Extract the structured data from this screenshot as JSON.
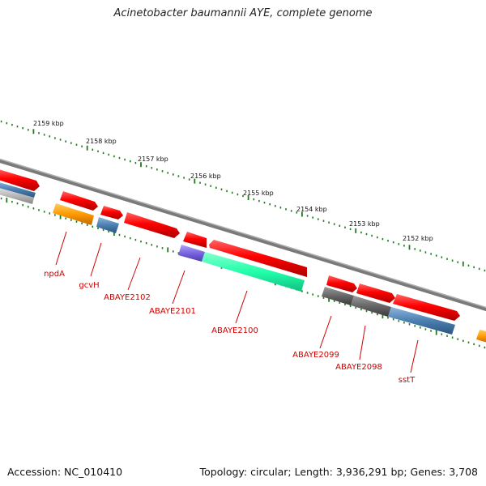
{
  "title": "Acinetobacter baumannii AYE, complete genome",
  "accession_text": "Accession: NC_010410",
  "summary_text": "Topology: circular; Length: 3,936,291 bp; Genes: 3,708",
  "scale_labels": [
    {
      "text": "2159 kbp"
    },
    {
      "text": "2158 kbp"
    },
    {
      "text": "2157 kbp"
    },
    {
      "text": "2156 kbp"
    },
    {
      "text": "2155 kbp"
    },
    {
      "text": "2154 kbp"
    },
    {
      "text": "2153 kbp"
    },
    {
      "text": "2152 kbp"
    }
  ],
  "gene_labels": [
    {
      "text": "npdA"
    },
    {
      "text": "gcvH"
    },
    {
      "text": "ABAYE2102"
    },
    {
      "text": "ABAYE2101"
    },
    {
      "text": "ABAYE2100"
    },
    {
      "text": "ABAYE2099"
    },
    {
      "text": "ABAYE2098"
    },
    {
      "text": "sstT"
    }
  ],
  "colors": {
    "label": "#cc0000",
    "backbone": "#888888",
    "tick": "#1f7a1f",
    "forward_gene": "#ff0000",
    "orange_feature": "#ff9900",
    "blue_feature": "#4a7fb0",
    "purple_feature": "#7a66dd",
    "teal_feature": "#22ffaa",
    "dark_feature": "#666666",
    "gray_feature": "#b8b8b8"
  }
}
